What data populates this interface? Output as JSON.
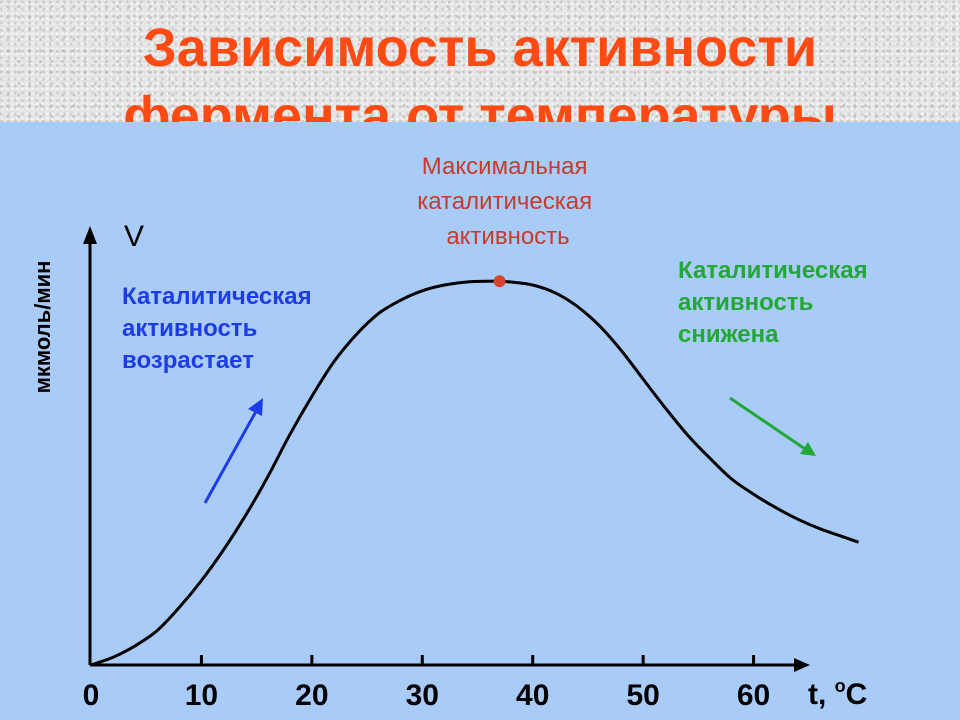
{
  "slide": {
    "title_line1": "Зависимость активности",
    "title_line2": "фермента от температуры"
  },
  "colors": {
    "title": "#ff4a14",
    "panel": "#a8cbf7",
    "curve": "#000000",
    "peak_marker": "#d9442e",
    "annotation_max": "#c83a2a",
    "annotation_increase": "#1e3ce6",
    "annotation_decrease": "#22a836"
  },
  "chart_data": {
    "type": "line",
    "title": "",
    "xlabel": "t, oC",
    "ylabel": "мкмоль/мин",
    "y_axis_symbol": "V",
    "x_ticks": [
      "0",
      "10",
      "20",
      "30",
      "40",
      "50",
      "60"
    ],
    "xlim": [
      0,
      70
    ],
    "ylim": [
      0,
      1.05
    ],
    "grid": false,
    "series": [
      {
        "x": [
          0,
          2,
          4,
          6,
          8,
          10,
          12,
          14,
          16,
          18,
          20,
          22,
          24,
          26,
          28,
          30,
          32,
          34,
          36,
          37,
          38,
          40,
          42,
          44,
          46,
          48,
          50,
          52,
          54,
          56,
          58,
          60,
          62,
          64,
          66,
          68,
          69.5
        ],
        "y": [
          0.0,
          0.02,
          0.05,
          0.09,
          0.15,
          0.22,
          0.3,
          0.39,
          0.49,
          0.6,
          0.7,
          0.79,
          0.86,
          0.915,
          0.95,
          0.975,
          0.99,
          0.998,
          1.0,
          1.0,
          0.998,
          0.99,
          0.97,
          0.935,
          0.885,
          0.82,
          0.745,
          0.67,
          0.6,
          0.54,
          0.485,
          0.445,
          0.41,
          0.38,
          0.355,
          0.335,
          0.32
        ]
      }
    ],
    "peak": {
      "x": 37,
      "y": 1.0
    },
    "annotations": {
      "max": [
        "Максимальная",
        "каталитическая",
        "активность"
      ],
      "increase": [
        "Каталитическая",
        "активность",
        "возрастает"
      ],
      "decrease": [
        "Каталитическая",
        "активность",
        "снижена"
      ]
    }
  }
}
